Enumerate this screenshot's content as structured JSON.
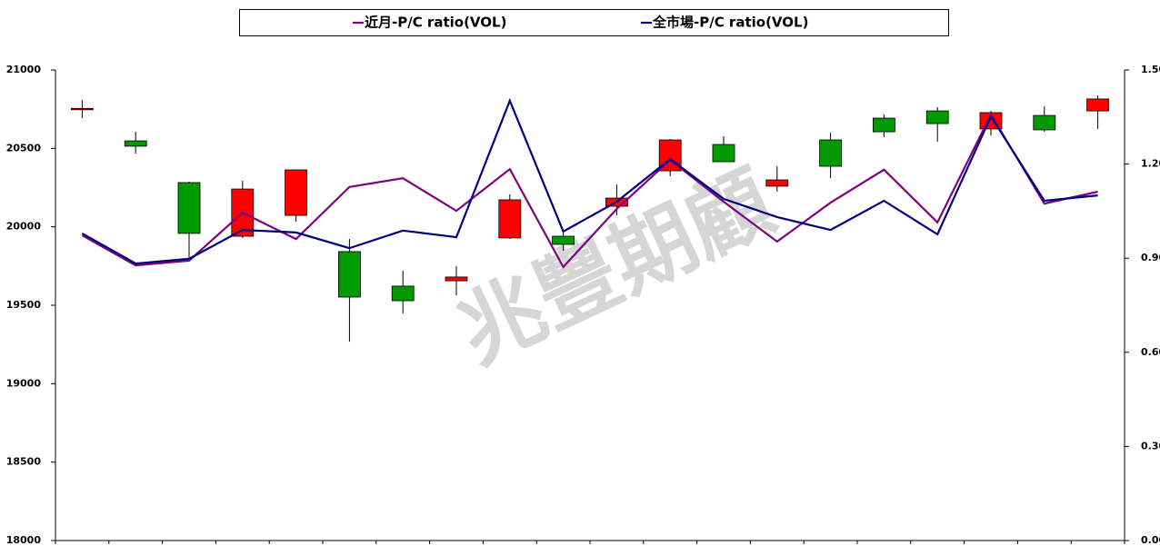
{
  "chart_data": {
    "type": "candlestick",
    "watermark": "兆豐期顧",
    "categories": [
      null,
      null,
      null,
      null,
      null,
      null,
      null,
      null,
      null,
      null,
      null,
      null,
      null,
      null,
      null,
      null,
      null,
      null,
      null,
      null
    ],
    "open": [
      20750,
      20548,
      20282,
      19940,
      20073,
      19842,
      19622,
      19656,
      19929,
      19940,
      20131,
      20357,
      20525,
      20259,
      20554,
      20693,
      20739,
      20624,
      20710,
      20739
    ],
    "high": [
      20809,
      20606,
      20288,
      20293,
      20365,
      19923,
      19720,
      19749,
      20207,
      19969,
      20270,
      20560,
      20577,
      20386,
      20600,
      20716,
      20763,
      20739,
      20768,
      20838
    ],
    "low": [
      20693,
      20467,
      19795,
      19929,
      20033,
      19268,
      19448,
      19564,
      19923,
      19848,
      20073,
      20322,
      20415,
      20224,
      20311,
      20571,
      20542,
      20583,
      20606,
      20624
    ],
    "close": [
      20755,
      20514,
      19958,
      20241,
      20363,
      19552,
      19529,
      19680,
      20172,
      19888,
      20183,
      20554,
      20415,
      20299,
      20386,
      20606,
      20658,
      20728,
      20618,
      20815
    ],
    "up_color": "#ff0000",
    "down_color": "#009900",
    "series": [
      {
        "name": "近月-P/C ratio(VOL)",
        "color": "#800080",
        "axis": "y2",
        "values": [
          0.973,
          0.877,
          0.892,
          1.045,
          0.961,
          1.127,
          1.155,
          1.051,
          1.184,
          0.872,
          1.057,
          1.213,
          1.08,
          0.953,
          1.077,
          1.182,
          1.014,
          1.358,
          1.074,
          1.112
        ]
      },
      {
        "name": "全市場-P/C ratio(VOL)",
        "color": "#000080",
        "axis": "y2",
        "values": [
          0.979,
          0.883,
          0.898,
          0.99,
          0.982,
          0.932,
          0.988,
          0.967,
          1.402,
          0.985,
          1.08,
          1.216,
          1.089,
          1.031,
          0.99,
          1.083,
          0.976,
          1.352,
          1.083,
          1.1
        ]
      }
    ],
    "ylim": [
      18000,
      21000
    ],
    "yticks": [
      18000,
      18500,
      19000,
      19500,
      20000,
      20500,
      21000
    ],
    "y2lim": [
      0,
      1.5
    ],
    "y2ticks": [
      {
        "value": 0,
        "label": "0.00"
      },
      {
        "value": 0.3,
        "label": "0.30"
      },
      {
        "value": 0.6,
        "label": "0.60"
      },
      {
        "value": 0.9,
        "label": "0.90"
      },
      {
        "value": 1.2,
        "label": "1.20"
      },
      {
        "value": 1.5,
        "label": "1.50"
      }
    ],
    "grid": false,
    "legend": "top"
  }
}
